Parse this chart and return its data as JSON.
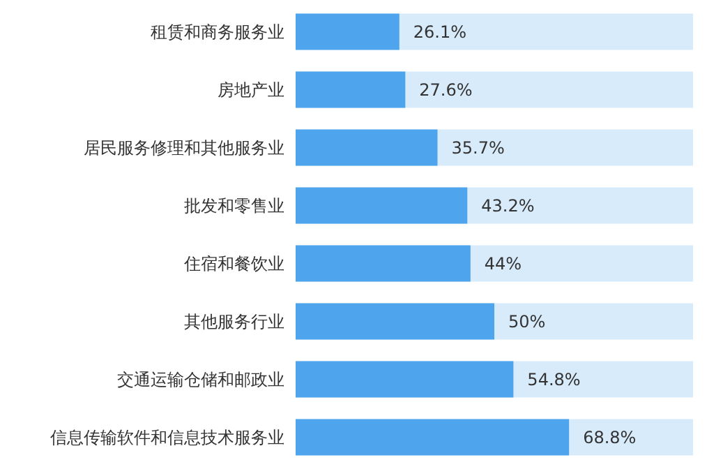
{
  "chart_data": {
    "type": "bar",
    "orientation": "horizontal",
    "categories": [
      "租赁和商务服务业",
      "房地产业",
      "居民服务修理和其他服务业",
      "批发和零售业",
      "住宿和餐饮业",
      "其他服务行业",
      "交通运输仓储和邮政业",
      "信息传输软件和信息技术服务业"
    ],
    "values": [
      26.1,
      27.6,
      35.7,
      43.2,
      44,
      50,
      54.8,
      68.8
    ],
    "value_labels": [
      "26.1%",
      "27.6%",
      "35.7%",
      "43.2%",
      "44%",
      "50%",
      "54.8%",
      "68.8%"
    ],
    "color": "#4ea5ee",
    "xlim": [
      0,
      100
    ]
  }
}
